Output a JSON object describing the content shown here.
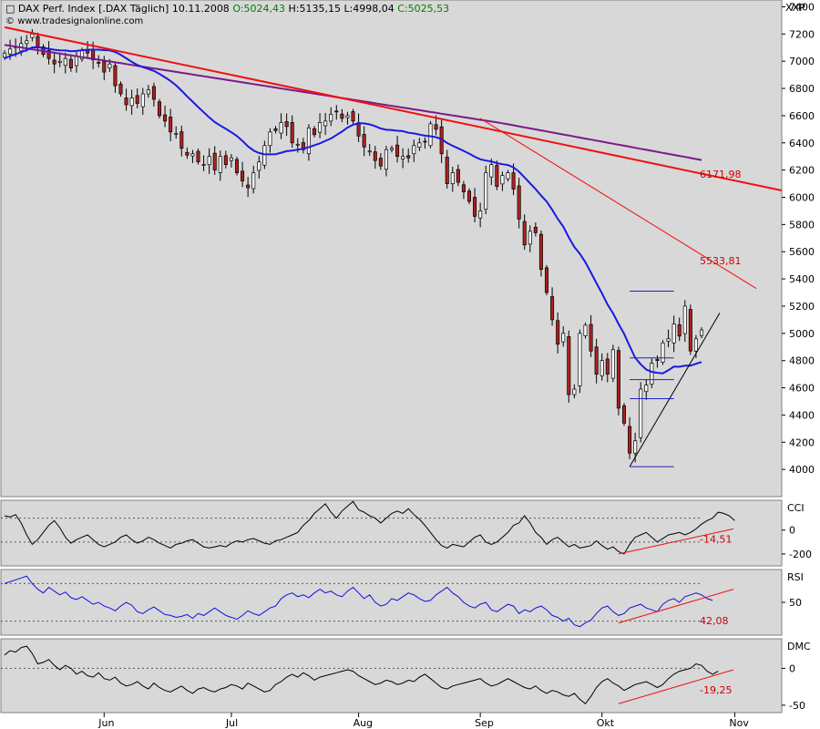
{
  "header": {
    "title": "DAX Perf. Index [.DAX  Täglich]",
    "date": "10.11.2008",
    "open": "O:5024,43",
    "high": "H:5135,15",
    "low": "L:4998,04",
    "close": "C:5025,53",
    "source": "www.tradesignalonline.com",
    "symbol": "XXP"
  },
  "colors": {
    "panel_bg": "#d8d8d8",
    "up_candle": "#ffffff",
    "down_candle": "#b02020",
    "trend_red": "#ee1111",
    "ma_purple": "#7a1a8a",
    "ma_blue": "#1a1ae0",
    "rsi_line": "#1010dd",
    "support": "#000000",
    "hlines": "#2020c0"
  },
  "chart_data": [
    {
      "type": "candlestick",
      "title": "DAX Perf. Index [.DAX  Täglich]",
      "ylim": [
        3800,
        7450
      ],
      "yticks": [
        4000,
        4200,
        4400,
        4600,
        4800,
        5000,
        5200,
        5400,
        5600,
        5800,
        6000,
        6200,
        6400,
        6600,
        6800,
        7000,
        7200,
        7400
      ],
      "xlabels": [
        {
          "label": "Jun",
          "index": 18
        },
        {
          "label": "Jul",
          "index": 41
        },
        {
          "label": "Aug",
          "index": 64
        },
        {
          "label": "Sep",
          "index": 86
        },
        {
          "label": "Okt",
          "index": 108
        },
        {
          "label": "Nov",
          "index": 132
        }
      ],
      "closes": [
        7060,
        7090,
        7100,
        7130,
        7150,
        7200,
        7100,
        7050,
        7020,
        6980,
        7000,
        7020,
        6950,
        7040,
        7080,
        7060,
        7010,
        6990,
        6920,
        6980,
        6820,
        6760,
        6680,
        6730,
        6690,
        6760,
        6790,
        6720,
        6600,
        6560,
        6480,
        6470,
        6360,
        6310,
        6320,
        6260,
        6240,
        6300,
        6200,
        6300,
        6240,
        6290,
        6180,
        6120,
        6070,
        6180,
        6260,
        6380,
        6480,
        6490,
        6550,
        6520,
        6400,
        6390,
        6350,
        6510,
        6460,
        6550,
        6560,
        6610,
        6630,
        6580,
        6600,
        6560,
        6450,
        6370,
        6340,
        6270,
        6230,
        6350,
        6360,
        6300,
        6300,
        6290,
        6380,
        6400,
        6410,
        6540,
        6500,
        6320,
        6100,
        6180,
        6110,
        6040,
        5970,
        5860,
        5900,
        6180,
        6240,
        6080,
        6160,
        6180,
        6060,
        5840,
        5650,
        5750,
        5740,
        5470,
        5300,
        5100,
        4920,
        5000,
        4550,
        4590,
        5000,
        5060,
        4870,
        4700,
        4800,
        4700,
        4880,
        4450,
        4340,
        4120,
        4210,
        4590,
        4620,
        4780,
        4800,
        4930,
        4960,
        5070,
        4980,
        5200,
        4870,
        4960,
        5025
      ],
      "annotations": [
        {
          "text": "6171,98",
          "value": 6171.98
        },
        {
          "text": "5533,81",
          "value": 5533.81
        }
      ]
    },
    {
      "type": "line",
      "title": "CCI",
      "yticks": [
        0,
        -200
      ],
      "values": [
        120,
        110,
        130,
        60,
        -40,
        -120,
        -80,
        -20,
        40,
        80,
        20,
        -60,
        -110,
        -80,
        -60,
        -40,
        -80,
        -120,
        -140,
        -120,
        -100,
        -60,
        -40,
        -80,
        -110,
        -90,
        -60,
        -80,
        -110,
        -130,
        -150,
        -120,
        -110,
        -90,
        -80,
        -110,
        -140,
        -150,
        -140,
        -130,
        -140,
        -110,
        -90,
        -100,
        -80,
        -70,
        -90,
        -110,
        -120,
        -90,
        -80,
        -60,
        -40,
        -20,
        40,
        80,
        140,
        180,
        220,
        150,
        100,
        160,
        200,
        240,
        170,
        150,
        120,
        100,
        60,
        100,
        140,
        160,
        140,
        180,
        130,
        90,
        40,
        -20,
        -80,
        -130,
        -150,
        -120,
        -130,
        -140,
        -100,
        -60,
        -40,
        -100,
        -120,
        -100,
        -60,
        -20,
        40,
        60,
        120,
        60,
        -20,
        -60,
        -120,
        -80,
        -60,
        -100,
        -140,
        -120,
        -150,
        -140,
        -130,
        -90,
        -130,
        -160,
        -140,
        -180,
        -200,
        -120,
        -60,
        -40,
        -20,
        -60,
        -100,
        -70,
        -40,
        -30,
        -20,
        -40,
        -20,
        10,
        50,
        80,
        100,
        150,
        140,
        120,
        80
      ],
      "annotations": [
        {
          "text": "-14,51",
          "value": -14.51
        }
      ]
    },
    {
      "type": "line",
      "title": "RSI",
      "yticks": [
        50
      ],
      "values": [
        70,
        72,
        74,
        76,
        78,
        70,
        64,
        60,
        66,
        62,
        58,
        61,
        55,
        53,
        56,
        52,
        48,
        50,
        46,
        44,
        41,
        46,
        50,
        47,
        40,
        38,
        42,
        45,
        41,
        37,
        36,
        34,
        35,
        37,
        33,
        38,
        36,
        40,
        44,
        40,
        36,
        34,
        32,
        36,
        41,
        38,
        36,
        40,
        44,
        46,
        54,
        58,
        60,
        56,
        58,
        55,
        60,
        64,
        60,
        62,
        58,
        56,
        62,
        66,
        60,
        54,
        58,
        50,
        46,
        48,
        54,
        52,
        56,
        60,
        58,
        54,
        51,
        52,
        58,
        62,
        66,
        60,
        56,
        50,
        46,
        44,
        48,
        50,
        42,
        40,
        44,
        48,
        46,
        38,
        42,
        40,
        44,
        46,
        42,
        36,
        34,
        30,
        33,
        26,
        24,
        28,
        31,
        38,
        44,
        46,
        40,
        36,
        38,
        44,
        46,
        48,
        44,
        42,
        40,
        48,
        52,
        54,
        50,
        56,
        58,
        60,
        58,
        54,
        52
      ],
      "annotations": [
        {
          "text": "42,08",
          "value": 42.08
        }
      ]
    },
    {
      "type": "line",
      "title": "DMC",
      "yticks": [
        0,
        -50
      ],
      "values": [
        18,
        24,
        22,
        28,
        30,
        20,
        6,
        8,
        12,
        4,
        -2,
        4,
        0,
        -8,
        -4,
        -10,
        -12,
        -6,
        -14,
        -16,
        -12,
        -20,
        -24,
        -22,
        -18,
        -24,
        -28,
        -20,
        -26,
        -30,
        -32,
        -28,
        -24,
        -30,
        -34,
        -28,
        -26,
        -30,
        -32,
        -28,
        -26,
        -22,
        -24,
        -28,
        -20,
        -24,
        -28,
        -32,
        -30,
        -22,
        -18,
        -12,
        -8,
        -12,
        -6,
        -10,
        -16,
        -12,
        -10,
        -8,
        -6,
        -4,
        -2,
        -4,
        -10,
        -14,
        -18,
        -22,
        -20,
        -16,
        -18,
        -22,
        -20,
        -16,
        -18,
        -12,
        -8,
        -14,
        -20,
        -26,
        -28,
        -24,
        -22,
        -20,
        -18,
        -16,
        -14,
        -20,
        -24,
        -22,
        -18,
        -14,
        -18,
        -22,
        -26,
        -28,
        -24,
        -30,
        -34,
        -30,
        -32,
        -36,
        -38,
        -34,
        -42,
        -48,
        -38,
        -26,
        -18,
        -14,
        -20,
        -24,
        -30,
        -26,
        -22,
        -20,
        -18,
        -22,
        -26,
        -22,
        -14,
        -8,
        -4,
        -2,
        0,
        6,
        4,
        -4,
        -8,
        -4
      ],
      "annotations": [
        {
          "text": "-19,25",
          "value": -19.25
        }
      ]
    }
  ]
}
